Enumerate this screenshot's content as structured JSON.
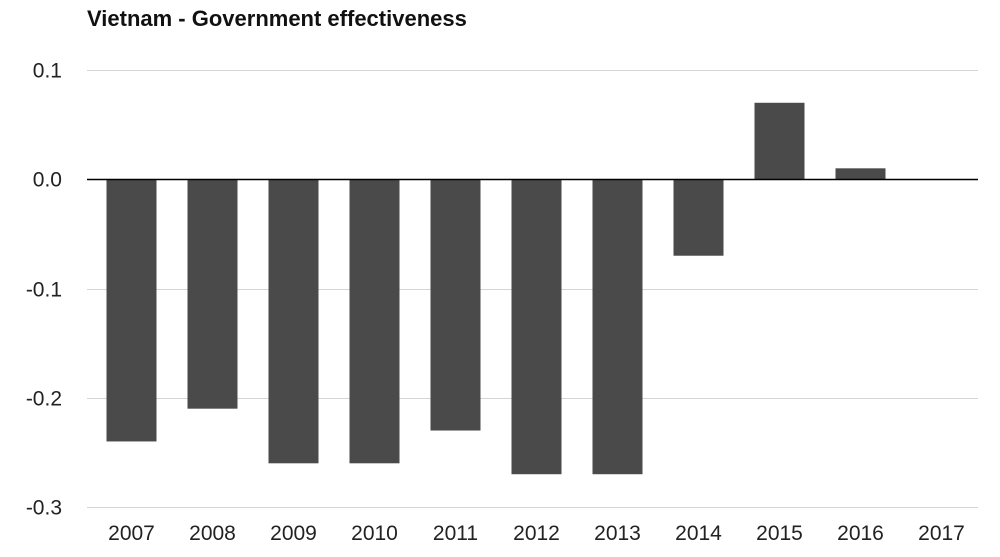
{
  "chart_data": {
    "type": "bar",
    "title": "Vietnam - Government effectiveness",
    "categories": [
      "2007",
      "2008",
      "2009",
      "2010",
      "2011",
      "2012",
      "2013",
      "2014",
      "2015",
      "2016",
      "2017"
    ],
    "values": [
      -0.24,
      -0.21,
      -0.26,
      -0.26,
      -0.23,
      -0.27,
      -0.27,
      -0.07,
      0.07,
      0.01,
      0.0
    ],
    "y_ticks": [
      "0.1",
      "0.0",
      "-0.1",
      "-0.2",
      "-0.3"
    ],
    "y_tick_values": [
      0.1,
      0.0,
      -0.1,
      -0.2,
      -0.3
    ],
    "ylim": [
      -0.3,
      0.1
    ],
    "grid": true,
    "bar_color": "#4a4a4a",
    "grid_color": "#d4d4d4",
    "zero_line_color": "#000000"
  }
}
